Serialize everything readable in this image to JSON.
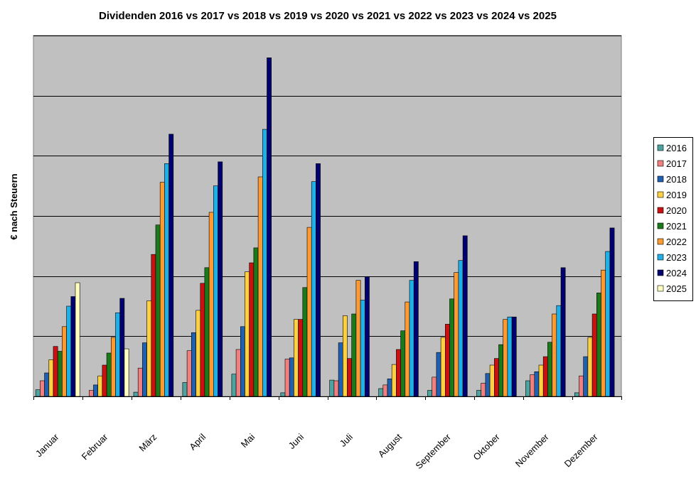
{
  "chart_data": {
    "type": "bar",
    "title": "Dividenden 2016 vs 2017 vs 2018 vs 2019 vs 2020 vs 2021 vs 2022 vs 2023 vs 2024 vs 2025",
    "ylabel": "€ nach Steuern",
    "xlabel": "",
    "ylim": [
      0,
      600
    ],
    "y_gridlines": [
      100,
      200,
      300,
      400,
      500,
      600
    ],
    "y_ticklabels_shown": false,
    "grid": true,
    "plot_background": "#c0c0c0",
    "legend_position": "right",
    "categories": [
      "Januar",
      "Februar",
      "März",
      "April",
      "Mai",
      "Juni",
      "Juli",
      "August",
      "September",
      "Oktober",
      "November",
      "Dezember"
    ],
    "series": [
      {
        "name": "2016",
        "color": "#4ca3a0",
        "values": [
          11,
          0,
          7,
          23,
          37,
          6,
          27,
          13,
          10,
          10,
          26,
          6
        ]
      },
      {
        "name": "2017",
        "color": "#f08080",
        "values": [
          26,
          10,
          47,
          76,
          78,
          62,
          26,
          19,
          32,
          22,
          36,
          34
        ]
      },
      {
        "name": "2018",
        "color": "#2060b0",
        "values": [
          39,
          19,
          89,
          106,
          116,
          64,
          89,
          29,
          73,
          38,
          41,
          66
        ]
      },
      {
        "name": "2019",
        "color": "#ffd040",
        "values": [
          61,
          34,
          159,
          143,
          207,
          128,
          134,
          53,
          98,
          52,
          52,
          98
        ]
      },
      {
        "name": "2020",
        "color": "#cc1010",
        "values": [
          83,
          52,
          236,
          188,
          222,
          128,
          63,
          78,
          120,
          63,
          66,
          137
        ]
      },
      {
        "name": "2021",
        "color": "#1a7a1a",
        "values": [
          75,
          72,
          285,
          214,
          247,
          181,
          137,
          109,
          162,
          86,
          90,
          172
        ]
      },
      {
        "name": "2022",
        "color": "#ff9a30",
        "values": [
          116,
          98,
          356,
          306,
          365,
          281,
          193,
          157,
          206,
          128,
          137,
          210
        ]
      },
      {
        "name": "2023",
        "color": "#20b0e8",
        "values": [
          150,
          139,
          387,
          350,
          444,
          357,
          160,
          193,
          226,
          132,
          151,
          241
        ]
      },
      {
        "name": "2024",
        "color": "#000070",
        "values": [
          166,
          163,
          436,
          390,
          563,
          387,
          199,
          224,
          267,
          132,
          214,
          280
        ]
      },
      {
        "name": "2025",
        "color": "#ffffc0",
        "values": [
          189,
          79,
          0,
          0,
          0,
          0,
          0,
          0,
          0,
          0,
          0,
          0
        ]
      }
    ]
  }
}
